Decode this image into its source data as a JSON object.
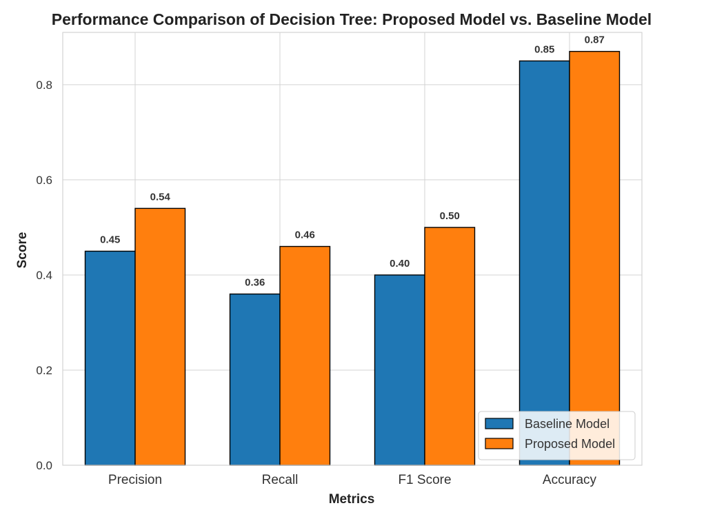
{
  "chart_data": {
    "type": "bar",
    "title": "Performance Comparison of Decision Tree: Proposed Model vs. Baseline Model",
    "xlabel": "Metrics",
    "ylabel": "Score",
    "categories": [
      "Precision",
      "Recall",
      "F1 Score",
      "Accuracy"
    ],
    "series": [
      {
        "name": "Baseline Model",
        "values": [
          0.45,
          0.36,
          0.4,
          0.85
        ],
        "color": "#1f77b4"
      },
      {
        "name": "Proposed Model",
        "values": [
          0.54,
          0.46,
          0.5,
          0.87
        ],
        "color": "#ff7f0e"
      }
    ],
    "value_labels": [
      [
        "0.45",
        "0.36",
        "0.40",
        "0.85"
      ],
      [
        "0.54",
        "0.46",
        "0.50",
        "0.87"
      ]
    ],
    "ylim": [
      0,
      0.91
    ],
    "yticks": [
      0.0,
      0.2,
      0.4,
      0.6,
      0.8
    ],
    "ytick_labels": [
      "0.0",
      "0.2",
      "0.4",
      "0.6",
      "0.8"
    ],
    "grid": true,
    "legend_position": "bottom-right"
  }
}
